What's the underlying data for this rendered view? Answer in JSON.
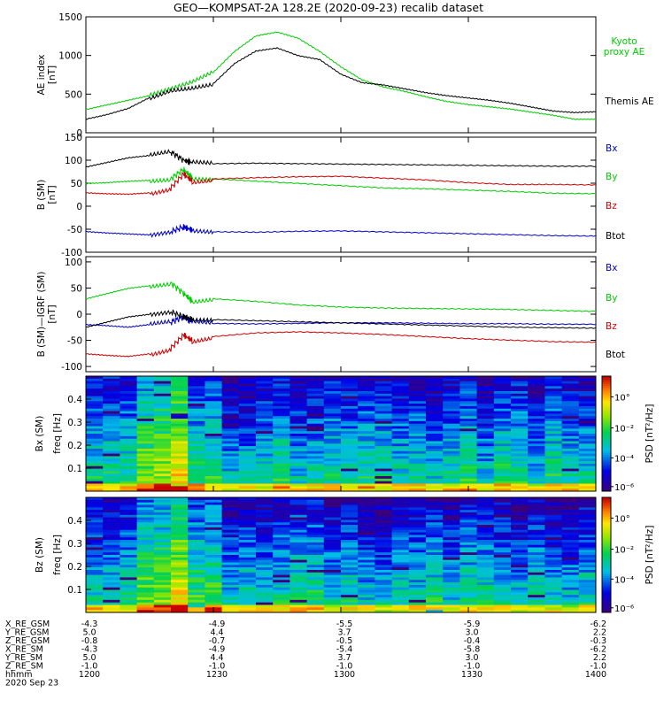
{
  "title": "GEO—KOMPSAT-2A 128.2E (2020-09-23) recalib dataset",
  "colors": {
    "black": "#000000",
    "green": "#00cc00",
    "red": "#cc0000",
    "blue": "#0000cc"
  },
  "chart_data": [
    {
      "type": "line",
      "ylabel": "AE index",
      "yunit": "[nT]",
      "ylim": [
        0,
        1500
      ],
      "yticks": [
        "0",
        "500",
        "1000",
        "1500"
      ],
      "x_hhmm": [
        "1200",
        "1230",
        "1300",
        "1330",
        "1400"
      ],
      "series": [
        {
          "name": "Kyoto proxy AE",
          "color": "#00cc00",
          "x": [
            0,
            5,
            10,
            15,
            20,
            25,
            30,
            35,
            40,
            45,
            50,
            55,
            60,
            65,
            70,
            75,
            80,
            85,
            90,
            95,
            100,
            105,
            110,
            115,
            120
          ],
          "y": [
            300,
            360,
            420,
            480,
            560,
            650,
            780,
            1050,
            1250,
            1300,
            1220,
            1050,
            850,
            680,
            590,
            530,
            460,
            400,
            360,
            330,
            300,
            260,
            220,
            170,
            170
          ]
        },
        {
          "name": "Themis AE",
          "color": "#000000",
          "x": [
            0,
            5,
            10,
            15,
            20,
            25,
            30,
            35,
            40,
            45,
            50,
            55,
            60,
            65,
            70,
            75,
            80,
            85,
            90,
            95,
            100,
            105,
            110,
            115,
            120
          ],
          "y": [
            180,
            240,
            320,
            460,
            560,
            590,
            640,
            900,
            1060,
            1100,
            1000,
            950,
            760,
            650,
            620,
            570,
            520,
            480,
            450,
            420,
            380,
            330,
            280,
            260,
            270
          ]
        }
      ]
    },
    {
      "type": "line",
      "ylabel": "B (SM)",
      "yunit": "[nT]",
      "ylim": [
        -100,
        150
      ],
      "yticks": [
        "-100",
        "-50",
        "0",
        "50",
        "100",
        "150"
      ],
      "series": [
        {
          "name": "Bx",
          "color": "#000000",
          "x": [
            0,
            5,
            10,
            15,
            20,
            23,
            25,
            30,
            40,
            50,
            60,
            70,
            80,
            90,
            100,
            110,
            120
          ],
          "y": [
            85,
            95,
            105,
            110,
            118,
            100,
            95,
            92,
            93,
            92,
            91,
            90,
            89,
            88,
            87,
            86,
            86
          ]
        },
        {
          "name": "By",
          "color": "#00cc00",
          "x": [
            0,
            5,
            10,
            15,
            20,
            23,
            25,
            30,
            40,
            50,
            60,
            70,
            80,
            90,
            100,
            110,
            120
          ],
          "y": [
            50,
            52,
            55,
            57,
            60,
            80,
            62,
            60,
            55,
            50,
            45,
            40,
            38,
            35,
            32,
            28,
            27
          ]
        },
        {
          "name": "Bz",
          "color": "#cc0000",
          "x": [
            0,
            5,
            10,
            15,
            20,
            23,
            25,
            30,
            40,
            50,
            60,
            70,
            80,
            90,
            100,
            110,
            120
          ],
          "y": [
            30,
            28,
            27,
            30,
            40,
            70,
            55,
            60,
            63,
            65,
            66,
            62,
            58,
            52,
            48,
            48,
            47
          ]
        },
        {
          "name": "Btot",
          "color": "#0000cc",
          "x": [
            0,
            5,
            10,
            15,
            20,
            23,
            25,
            30,
            40,
            50,
            60,
            70,
            80,
            90,
            100,
            110,
            120
          ],
          "y": [
            -55,
            -58,
            -60,
            -62,
            -55,
            -45,
            -52,
            -55,
            -56,
            -54,
            -53,
            -55,
            -57,
            -59,
            -61,
            -63,
            -64
          ]
        }
      ]
    },
    {
      "type": "line",
      "ylabel": "B (SM)—IGRF (SM)",
      "yunit": "[nT]",
      "ylim": [
        -110,
        110
      ],
      "yticks": [
        "-100",
        "-50",
        "0",
        "50",
        "100"
      ],
      "series": [
        {
          "name": "Bx",
          "color": "#0000cc",
          "x": [
            0,
            5,
            10,
            15,
            20,
            23,
            25,
            30,
            40,
            50,
            60,
            70,
            80,
            90,
            100,
            110,
            120
          ],
          "y": [
            -20,
            -22,
            -25,
            -20,
            -15,
            -5,
            -15,
            -18,
            -19,
            -18,
            -17,
            -17,
            -18,
            -19,
            -19,
            -20,
            -20
          ]
        },
        {
          "name": "By",
          "color": "#00cc00",
          "x": [
            0,
            5,
            10,
            15,
            20,
            23,
            25,
            30,
            40,
            50,
            60,
            70,
            80,
            90,
            100,
            110,
            120
          ],
          "y": [
            30,
            40,
            50,
            55,
            60,
            40,
            25,
            30,
            25,
            18,
            14,
            12,
            11,
            10,
            9,
            7,
            5
          ]
        },
        {
          "name": "Bz",
          "color": "#cc0000",
          "x": [
            0,
            5,
            10,
            15,
            20,
            23,
            25,
            30,
            40,
            50,
            60,
            70,
            80,
            90,
            100,
            110,
            120
          ],
          "y": [
            -75,
            -78,
            -80,
            -75,
            -65,
            -40,
            -50,
            -42,
            -35,
            -33,
            -35,
            -38,
            -42,
            -46,
            -49,
            -52,
            -53
          ]
        },
        {
          "name": "Btot",
          "color": "#000000",
          "x": [
            0,
            5,
            10,
            15,
            20,
            23,
            25,
            30,
            40,
            50,
            60,
            70,
            80,
            90,
            100,
            110,
            120
          ],
          "y": [
            -25,
            -15,
            -5,
            0,
            5,
            -5,
            -10,
            -10,
            -12,
            -14,
            -16,
            -18,
            -20,
            -22,
            -24,
            -25,
            -26
          ]
        }
      ]
    },
    {
      "type": "heatmap",
      "ylabel": "Bx (SM)",
      "yunit": "freq [Hz]",
      "yticks": [
        "0.1",
        "0.2",
        "0.3",
        "0.4"
      ],
      "colorbar_label": "PSD [nT²/Hz]",
      "colorbar_ticks": [
        "10°",
        "10⁻²",
        "10⁻⁴",
        "10⁻⁶"
      ]
    },
    {
      "type": "heatmap",
      "ylabel": "Bz (SM)",
      "yunit": "freq [Hz]",
      "yticks": [
        "0.1",
        "0.2",
        "0.3",
        "0.4"
      ],
      "colorbar_label": "PSD [nT²/Hz]",
      "colorbar_ticks": [
        "10°",
        "10⁻²",
        "10⁻⁴",
        "10⁻⁶"
      ]
    }
  ],
  "labels": {
    "kyoto": [
      "Kyoto",
      "proxy AE"
    ],
    "themis": "Themis AE",
    "p2": [
      "Bx",
      "By",
      "Bz",
      "Btot"
    ],
    "p3": [
      "Bx",
      "By",
      "Bz",
      "Btot"
    ]
  },
  "ephemeris": {
    "rows": [
      {
        "label": "X_RE_GSM",
        "values": [
          "-4.3",
          "-4.9",
          "-5.5",
          "-5.9",
          "-6.2"
        ]
      },
      {
        "label": "Y_RE_GSM",
        "values": [
          "5.0",
          "4.4",
          "3.7",
          "3.0",
          "2.2"
        ]
      },
      {
        "label": "Z_RE_GSM",
        "values": [
          "-0.8",
          "-0.7",
          "-0.5",
          "-0.4",
          "-0.3"
        ]
      },
      {
        "label": "X_RE_SM",
        "values": [
          "-4.3",
          "-4.9",
          "-5.4",
          "-5.8",
          "-6.2"
        ]
      },
      {
        "label": "Y_RE_SM",
        "values": [
          "5.0",
          "4.4",
          "3.7",
          "3.0",
          "2.2"
        ]
      },
      {
        "label": "Z_RE_SM",
        "values": [
          "-1.0",
          "-1.0",
          "-1.0",
          "-1.0",
          "-1.0"
        ]
      },
      {
        "label": "hhmm",
        "values": [
          "1200",
          "1230",
          "1300",
          "1330",
          "1400"
        ]
      }
    ],
    "date": "2020 Sep 23"
  }
}
